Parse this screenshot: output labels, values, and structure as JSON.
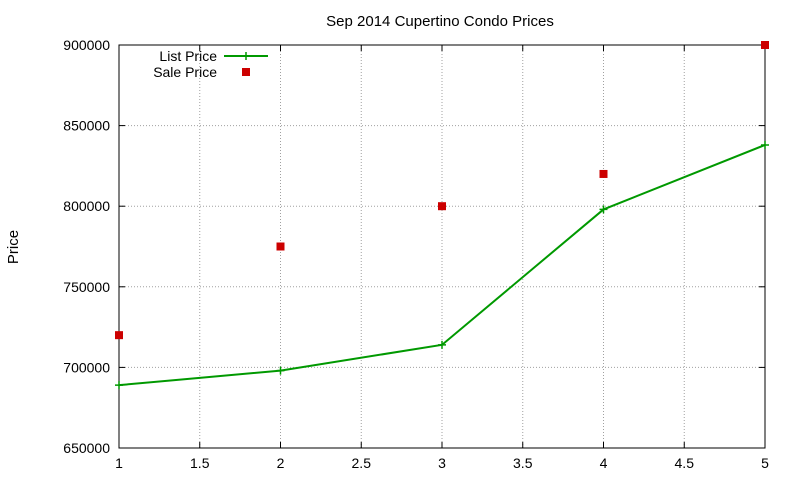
{
  "chart_data": {
    "type": "line",
    "title": "Sep 2014 Cupertino Condo Prices",
    "xlabel": "",
    "ylabel": "Price",
    "xlim": [
      1,
      5
    ],
    "ylim": [
      650000,
      900000
    ],
    "x_ticks": [
      "1",
      "1.5",
      "2",
      "2.5",
      "3",
      "3.5",
      "4",
      "4.5",
      "5"
    ],
    "y_ticks": [
      "650000",
      "700000",
      "750000",
      "800000",
      "850000",
      "900000"
    ],
    "grid": true,
    "legend_position": "top-left",
    "series": [
      {
        "name": "List Price",
        "style": "line-with-plus-markers",
        "color": "#009900",
        "x": [
          1,
          2,
          3,
          4,
          5
        ],
        "y": [
          689000,
          698000,
          714000,
          798000,
          838000
        ]
      },
      {
        "name": "Sale Price",
        "style": "square-points",
        "color": "#cc0000",
        "x": [
          1,
          2,
          3,
          4,
          5
        ],
        "y": [
          720000,
          775000,
          800000,
          820000,
          900000
        ]
      }
    ]
  }
}
